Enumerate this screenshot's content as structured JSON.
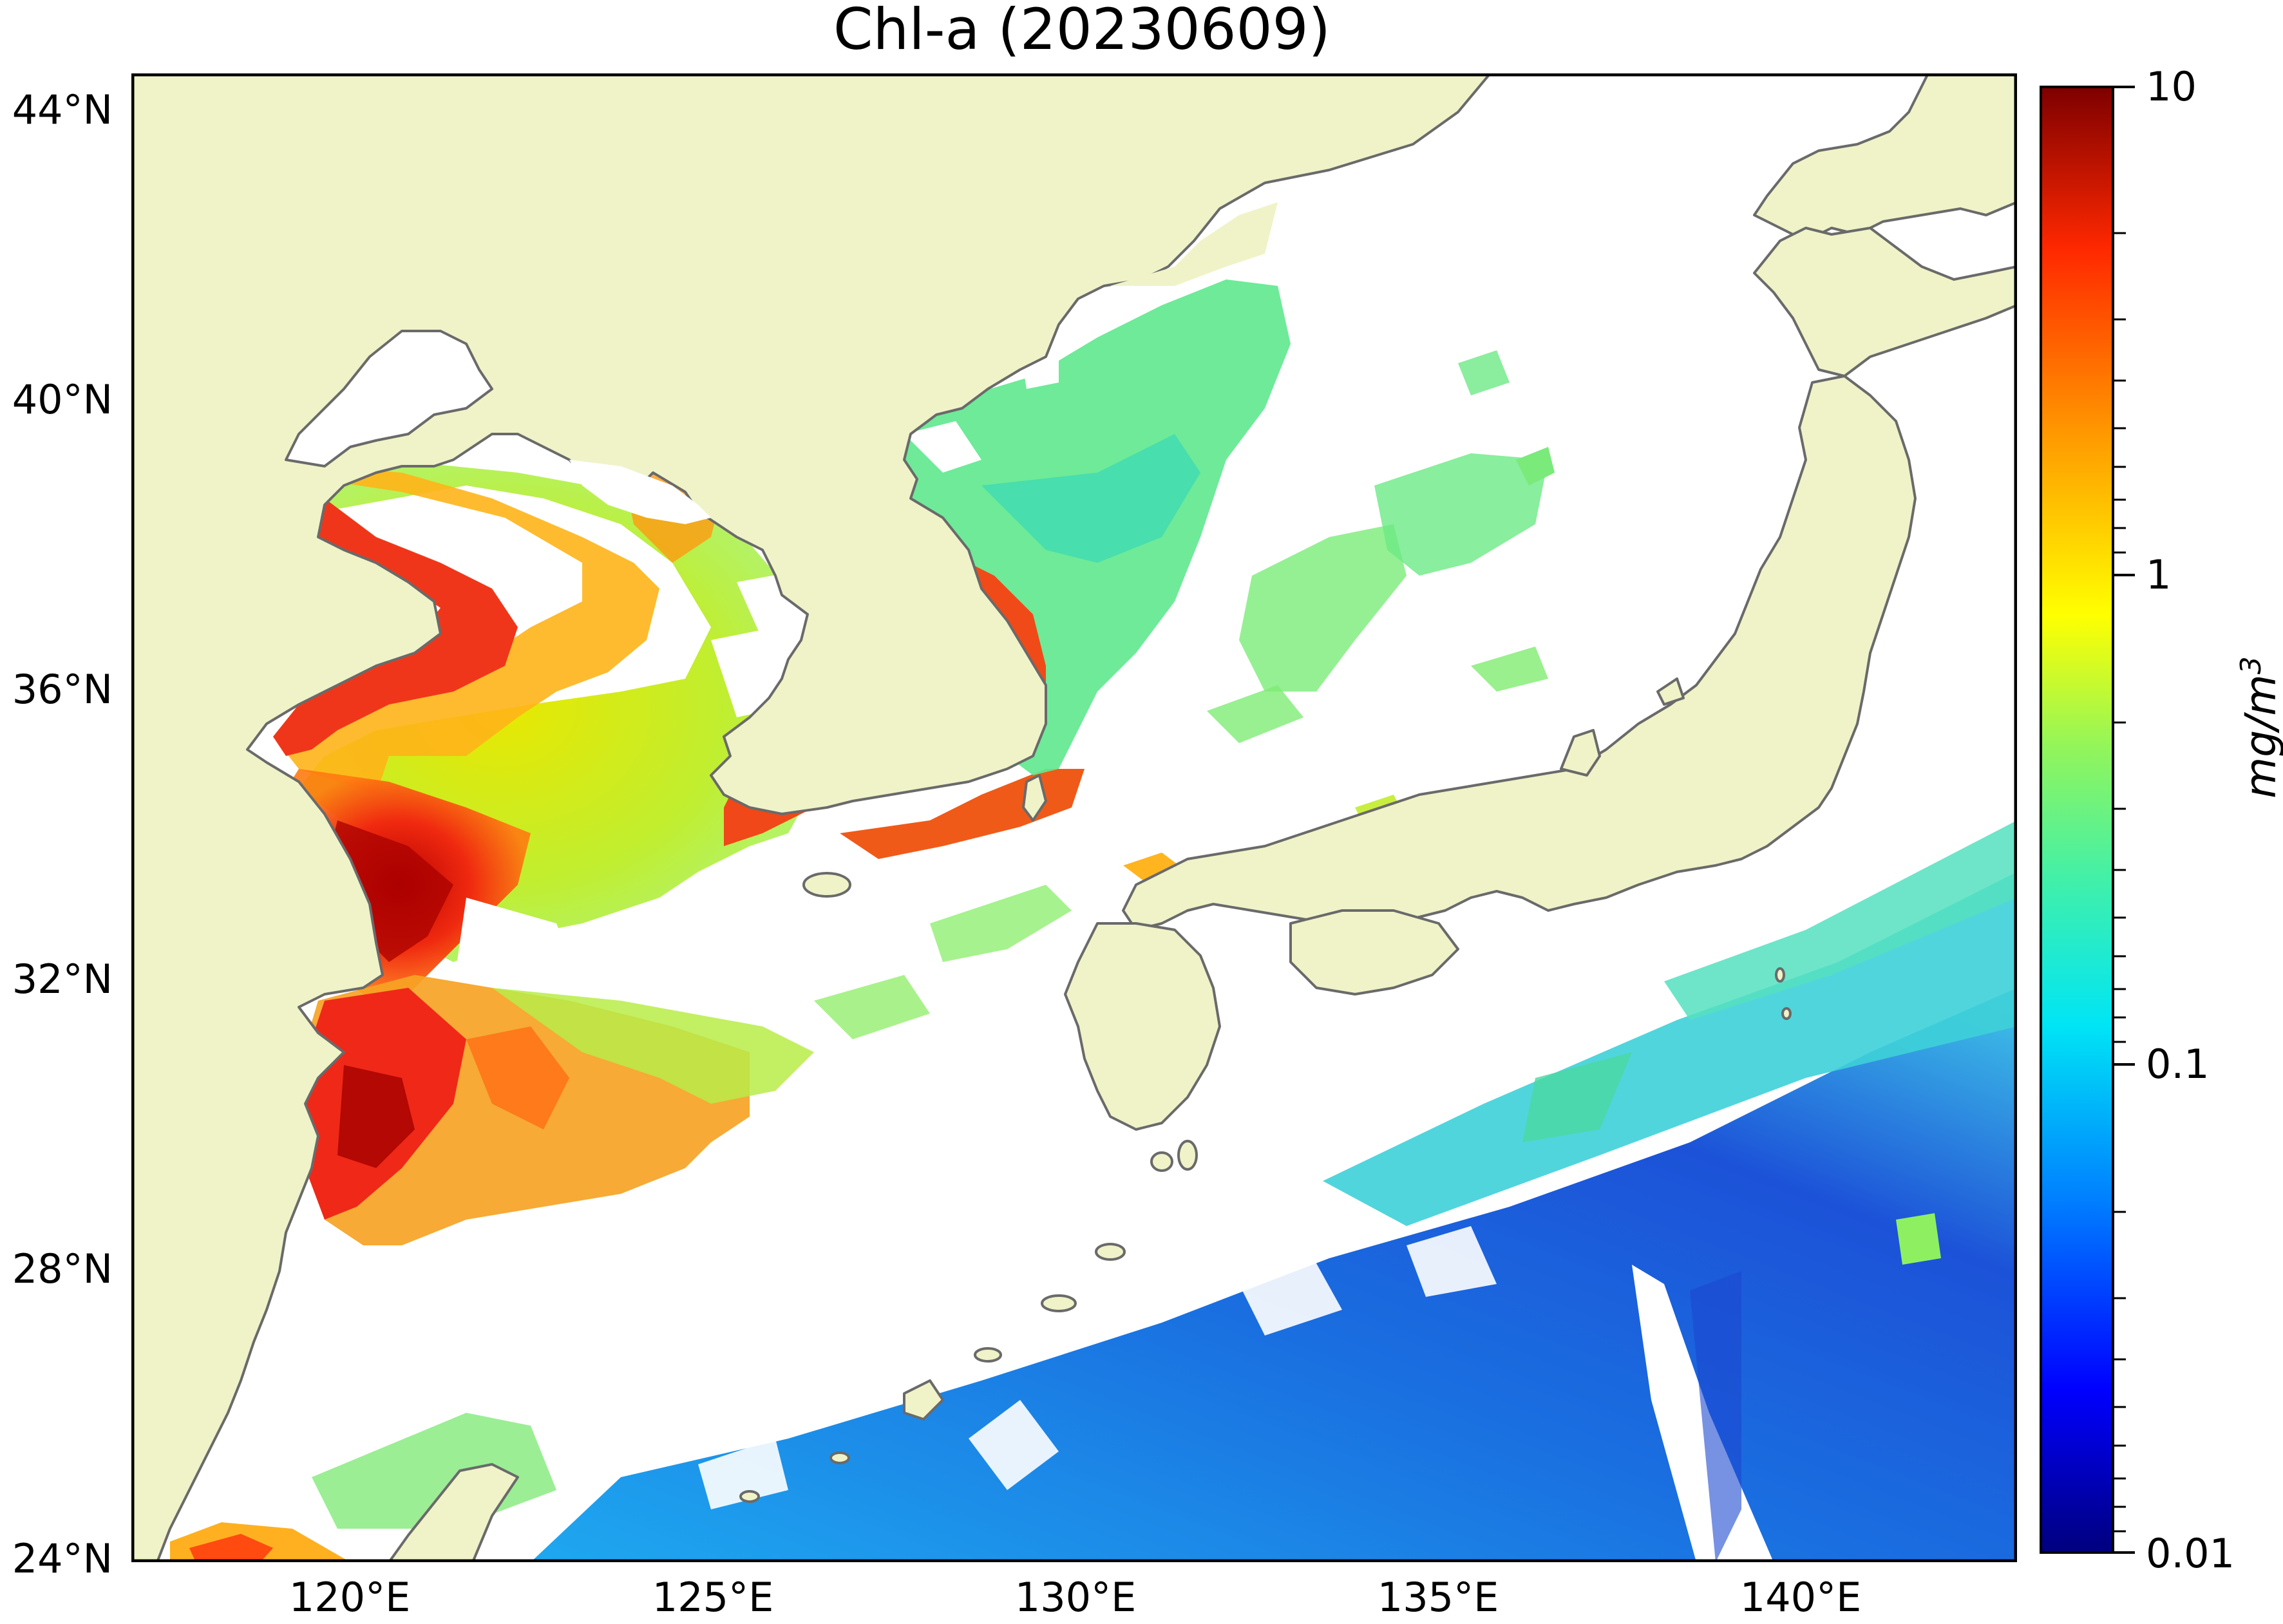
{
  "title": "Chl-a (20230609)",
  "map": {
    "region": "East China Sea / Yellow Sea / Sea of Japan",
    "extent_lon": [
      117,
      143
    ],
    "extent_lat": [
      24,
      44.5
    ],
    "land_color": "#f0f3c8",
    "coast_color": "#6a6a6a",
    "no_data_color": "#ffffff",
    "lat_labels": [
      "44°N",
      "40°N",
      "36°N",
      "32°N",
      "28°N",
      "24°N"
    ],
    "lon_labels": [
      "120°E",
      "125°E",
      "130°E",
      "135°E",
      "140°E"
    ]
  },
  "colorbar": {
    "scale": "log",
    "range": [
      0.01,
      10
    ],
    "ticks": [
      "10",
      "1",
      "0.1",
      "0.01"
    ],
    "unit": "mg/m3",
    "colormap": "jet",
    "colors": [
      "#00007f",
      "#0000ff",
      "#007fff",
      "#00e5f5",
      "#93f55a",
      "#ffff00",
      "#ff9c00",
      "#ff2800",
      "#7f0000"
    ]
  }
}
